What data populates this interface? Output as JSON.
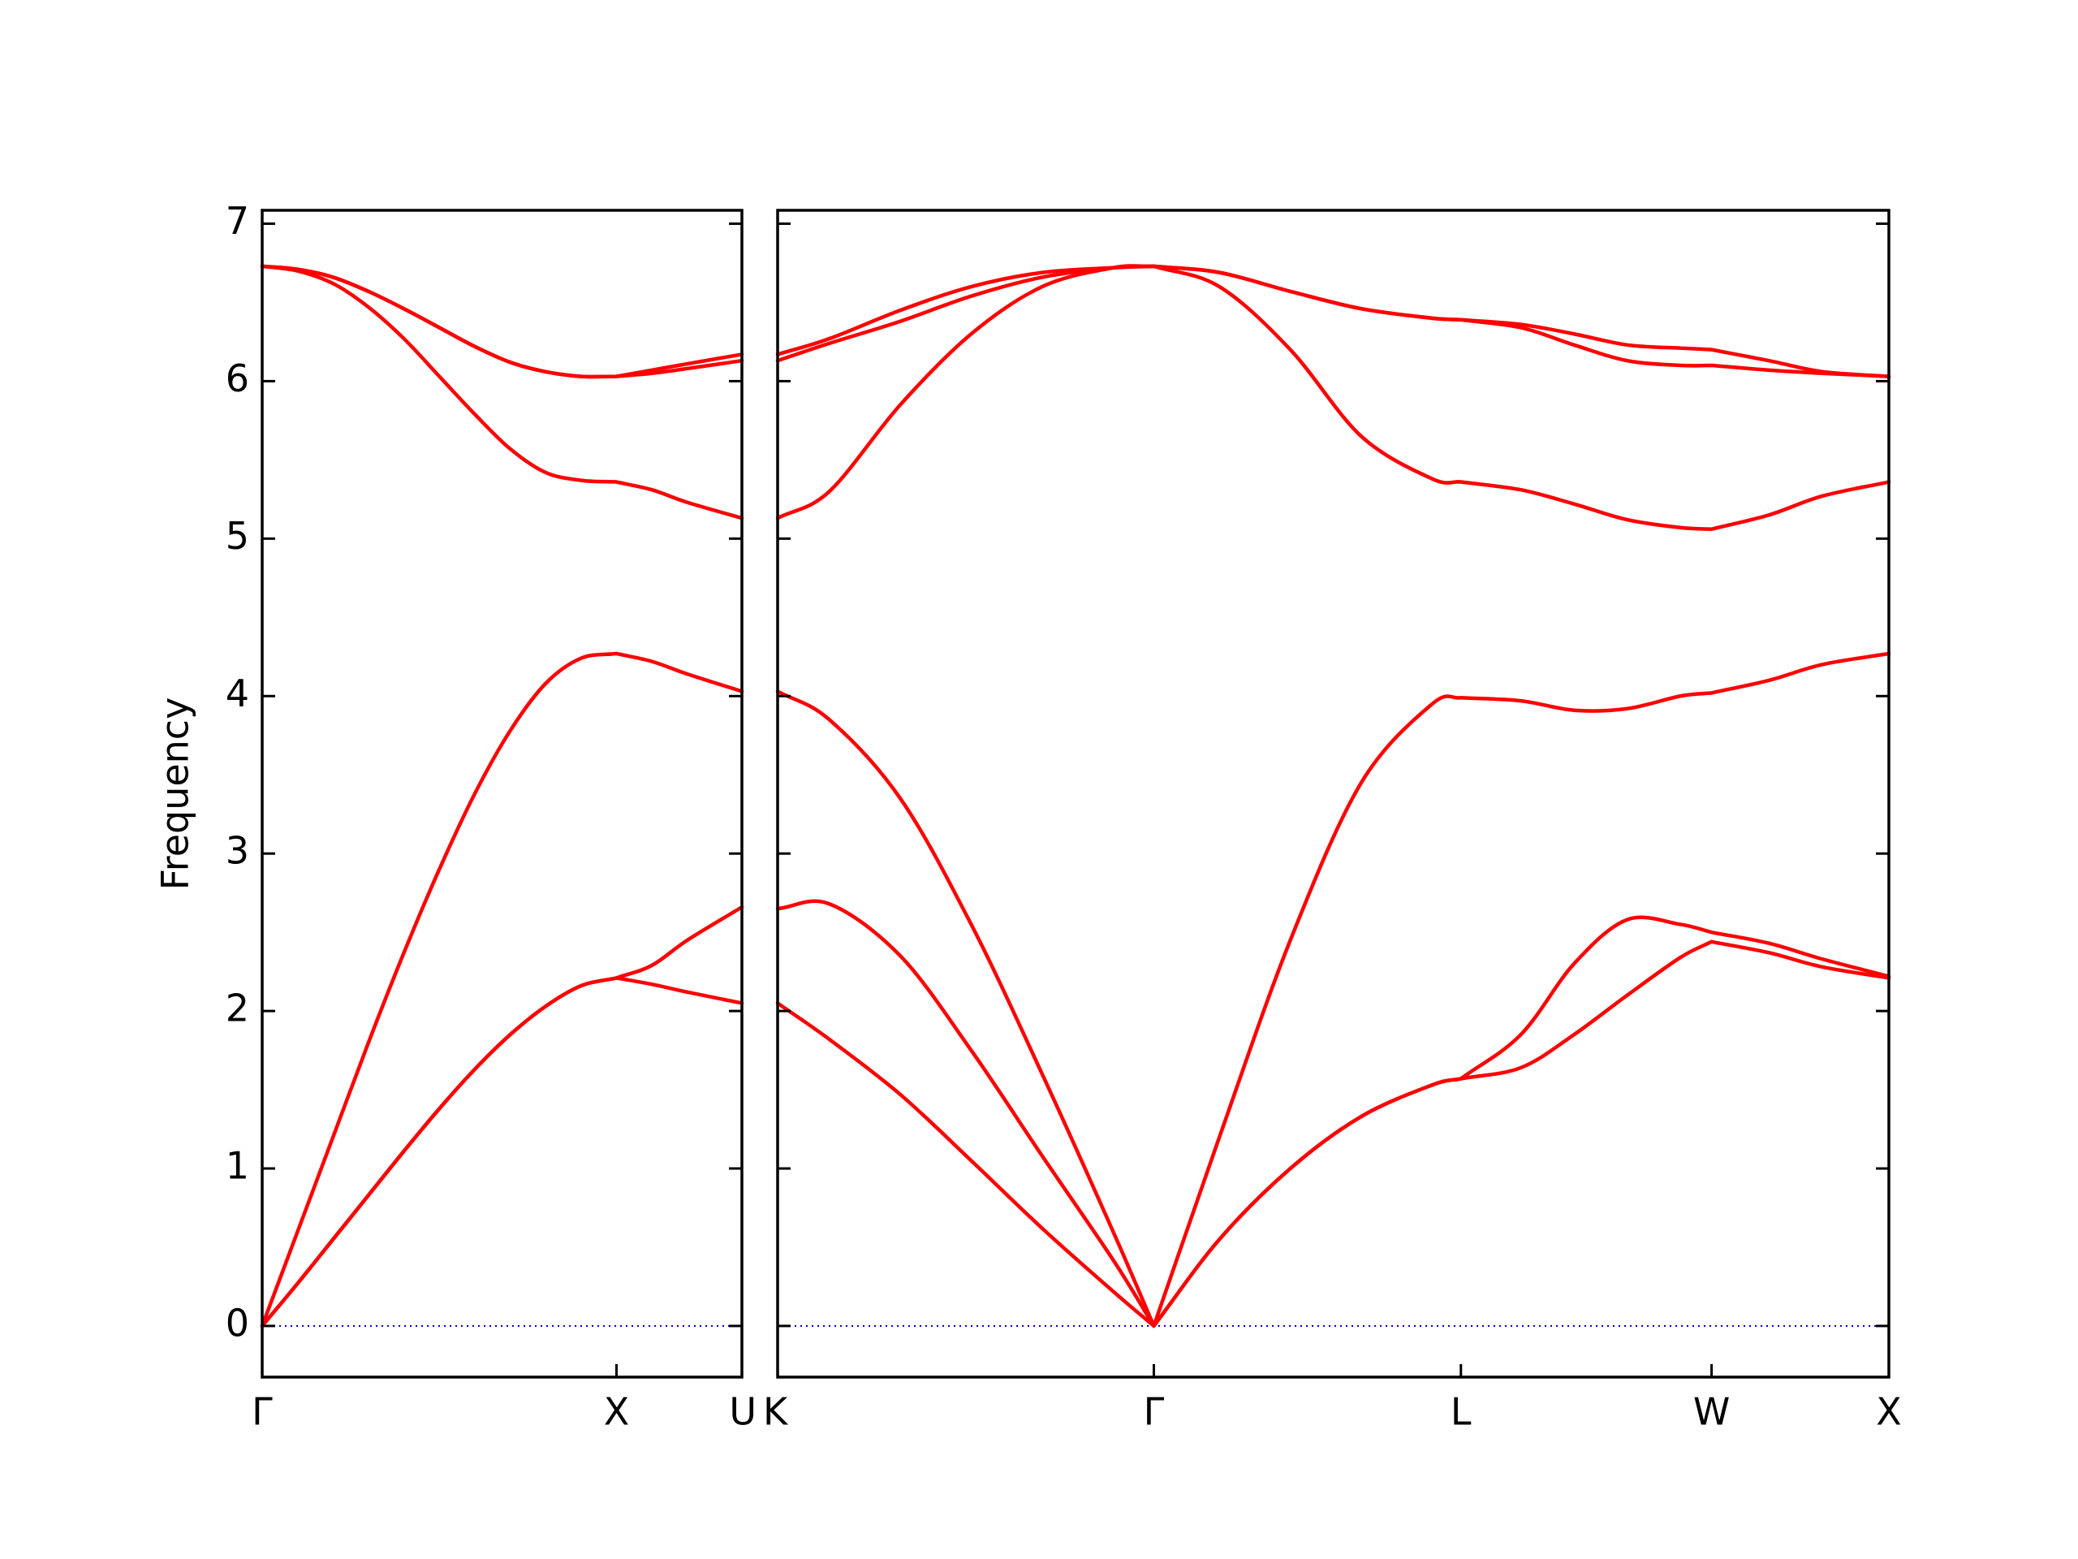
{
  "chart_data": [
    {
      "type": "line",
      "ylabel": "Frequency",
      "color": "#ff0000",
      "hline": 0,
      "hline_color": "#0000cc",
      "xlim": [
        0,
        1.354
      ],
      "xticks": [
        {
          "value": 0,
          "label": "Γ"
        },
        {
          "value": 1,
          "label": "X"
        },
        {
          "value": 1.354,
          "label": "U"
        }
      ],
      "ylim": [
        -0.325,
        7.085
      ],
      "yticks": [
        0,
        1,
        2,
        3,
        4,
        5,
        6,
        7
      ],
      "x": [
        0,
        0.1,
        0.2,
        0.3,
        0.4,
        0.5,
        0.6,
        0.7,
        0.8,
        0.9,
        1.0,
        1.1,
        1.2,
        1.354
      ],
      "series": [
        {
          "values": [
            0,
            0.27,
            0.55,
            0.83,
            1.11,
            1.38,
            1.63,
            1.85,
            2.03,
            2.16,
            2.21,
            2.17,
            2.12,
            2.05
          ]
        },
        {
          "values": [
            0,
            0.27,
            0.55,
            0.83,
            1.11,
            1.38,
            1.63,
            1.85,
            2.03,
            2.16,
            2.21,
            2.29,
            2.45,
            2.66
          ]
        },
        {
          "values": [
            0,
            0.6,
            1.2,
            1.8,
            2.37,
            2.9,
            3.38,
            3.78,
            4.08,
            4.24,
            4.27,
            4.22,
            4.14,
            4.03
          ]
        },
        {
          "values": [
            6.73,
            6.7,
            6.62,
            6.47,
            6.27,
            6.03,
            5.79,
            5.57,
            5.42,
            5.37,
            5.36,
            5.31,
            5.23,
            5.13
          ]
        },
        {
          "values": [
            6.73,
            6.71,
            6.66,
            6.57,
            6.46,
            6.34,
            6.22,
            6.12,
            6.06,
            6.03,
            6.03,
            6.05,
            6.08,
            6.13
          ]
        },
        {
          "values": [
            6.73,
            6.71,
            6.66,
            6.57,
            6.46,
            6.34,
            6.22,
            6.12,
            6.06,
            6.03,
            6.03,
            6.07,
            6.11,
            6.17
          ]
        }
      ]
    },
    {
      "type": "line",
      "color": "#ff0000",
      "hline": 0,
      "hline_color": "#0000cc",
      "xlim": [
        1.354,
        4.488
      ],
      "xticks": [
        {
          "value": 1.354,
          "label": "K"
        },
        {
          "value": 2.415,
          "label": "Γ"
        },
        {
          "value": 3.281,
          "label": "L"
        },
        {
          "value": 3.988,
          "label": "W"
        },
        {
          "value": 4.488,
          "label": "X"
        }
      ],
      "ylim": [
        -0.325,
        7.085
      ],
      "yticks": [
        0,
        1,
        2,
        3,
        4,
        5,
        6,
        7
      ],
      "x": [
        1.354,
        1.5,
        1.7,
        1.9,
        2.1,
        2.3,
        2.415,
        2.6,
        2.8,
        3.0,
        3.2,
        3.281,
        3.45,
        3.6,
        3.75,
        3.9,
        3.988,
        4.15,
        4.3,
        4.488
      ],
      "series": [
        {
          "values": [
            2.05,
            1.82,
            1.47,
            1.05,
            0.62,
            0.22,
            0,
            0.55,
            1.0,
            1.33,
            1.53,
            1.57,
            1.64,
            1.85,
            2.1,
            2.34,
            2.44,
            2.37,
            2.28,
            2.21
          ]
        },
        {
          "values": [
            2.65,
            2.68,
            2.35,
            1.75,
            1.08,
            0.42,
            0,
            0.55,
            1.0,
            1.33,
            1.53,
            1.57,
            1.85,
            2.3,
            2.58,
            2.55,
            2.5,
            2.43,
            2.33,
            2.22
          ]
        },
        {
          "values": [
            4.03,
            3.85,
            3.35,
            2.55,
            1.6,
            0.6,
            0,
            1.2,
            2.45,
            3.45,
            3.95,
            3.99,
            3.97,
            3.91,
            3.92,
            4.0,
            4.02,
            4.1,
            4.2,
            4.27
          ]
        },
        {
          "values": [
            5.13,
            5.3,
            5.85,
            6.3,
            6.6,
            6.72,
            6.73,
            6.6,
            6.2,
            5.65,
            5.38,
            5.36,
            5.31,
            5.22,
            5.12,
            5.07,
            5.06,
            5.15,
            5.27,
            5.36
          ]
        },
        {
          "values": [
            6.13,
            6.24,
            6.38,
            6.54,
            6.66,
            6.72,
            6.73,
            6.69,
            6.57,
            6.46,
            6.4,
            6.39,
            6.34,
            6.23,
            6.13,
            6.1,
            6.1,
            6.07,
            6.05,
            6.03
          ]
        },
        {
          "values": [
            6.17,
            6.27,
            6.45,
            6.6,
            6.69,
            6.72,
            6.73,
            6.69,
            6.57,
            6.46,
            6.4,
            6.39,
            6.36,
            6.3,
            6.23,
            6.21,
            6.2,
            6.13,
            6.06,
            6.03
          ]
        }
      ]
    }
  ]
}
